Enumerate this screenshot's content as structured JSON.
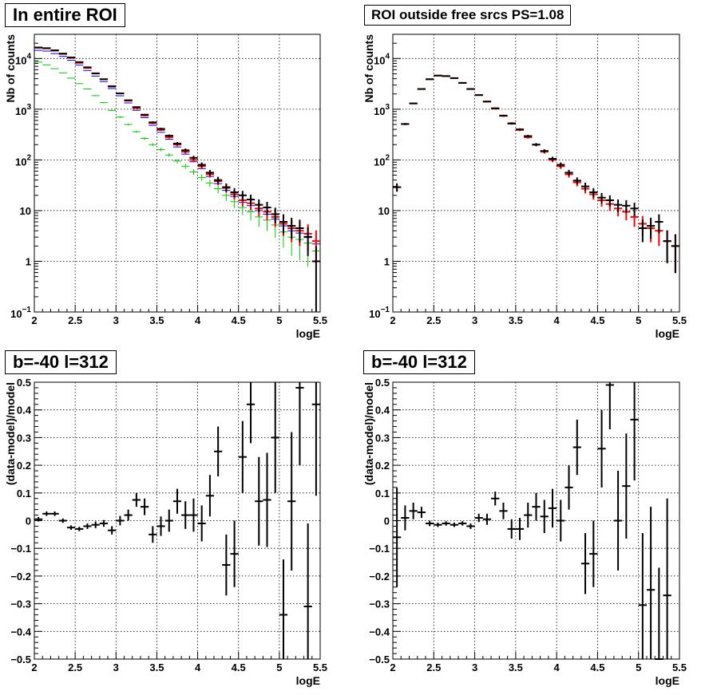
{
  "chart_data": [
    {
      "type": "scatter",
      "title": "In entire ROI",
      "xlabel": "logE",
      "ylabel": "Nb of counts",
      "xlim": [
        2,
        5.5
      ],
      "ylim": [
        0.1,
        30000
      ],
      "yscale": "log",
      "grid": true,
      "xticks": [
        "2",
        "2.5",
        "3",
        "3.5",
        "4",
        "4.5",
        "5",
        "5.5"
      ],
      "yticks": [
        {
          "v": 0.1,
          "base": "10",
          "exp": "−1"
        },
        {
          "v": 1,
          "label": "1"
        },
        {
          "v": 10,
          "label": "10"
        },
        {
          "v": 100,
          "base": "10",
          "exp": "2"
        },
        {
          "v": 1000,
          "base": "10",
          "exp": "3"
        },
        {
          "v": 10000,
          "base": "10",
          "exp": "4"
        }
      ],
      "colors": {
        "data": "#000000",
        "total": "#ff0000",
        "blue": "#0000ff",
        "green": "#00cc00"
      },
      "x": [
        2.05,
        2.15,
        2.25,
        2.35,
        2.45,
        2.55,
        2.65,
        2.75,
        2.85,
        2.95,
        3.05,
        3.15,
        3.25,
        3.35,
        3.45,
        3.55,
        3.65,
        3.75,
        3.85,
        3.95,
        4.05,
        4.15,
        4.25,
        4.35,
        4.45,
        4.55,
        4.65,
        4.75,
        4.85,
        4.95,
        5.05,
        5.15,
        5.25,
        5.35,
        5.45
      ],
      "series": [
        {
          "role": "data",
          "values": [
            16500,
            16000,
            14500,
            12500,
            10500,
            8500,
            6700,
            5100,
            3900,
            2800,
            2050,
            1500,
            1100,
            780,
            550,
            410,
            300,
            210,
            155,
            110,
            80,
            56,
            40,
            29,
            23,
            20,
            16.5,
            13,
            11.5,
            8.5,
            6,
            5,
            4.5,
            3,
            1
          ]
        },
        {
          "role": "total",
          "values": [
            16300,
            15800,
            14300,
            12300,
            10300,
            8200,
            6500,
            5050,
            3900,
            2850,
            2050,
            1470,
            1050,
            750,
            530,
            390,
            280,
            200,
            145,
            100,
            75,
            52,
            38,
            28,
            21,
            16,
            14,
            11,
            9.5,
            7.5,
            5.5,
            4.5,
            4,
            3.5,
            2.5
          ]
        },
        {
          "role": "blue",
          "values": [
            14500,
            14000,
            12500,
            11000,
            9200,
            7400,
            5800,
            4500,
            3500,
            2550,
            1840,
            1330,
            950,
            680,
            480,
            350,
            255,
            180,
            130,
            92,
            67,
            47,
            34,
            25,
            19,
            14.5,
            12.5,
            10,
            8.5,
            6.8,
            5,
            4,
            3.6,
            3.1,
            2.2
          ]
        },
        {
          "role": "green",
          "values": [
            8500,
            7500,
            6300,
            5200,
            4100,
            3200,
            2500,
            1850,
            1350,
            950,
            700,
            500,
            360,
            265,
            200,
            160,
            125,
            95,
            75,
            58,
            45,
            35,
            27,
            20,
            15,
            11.5,
            9.5,
            7.5,
            6.5,
            5.2,
            3.8,
            3,
            2.7,
            2.3,
            1.6
          ]
        }
      ]
    },
    {
      "type": "scatter",
      "title": "ROI outside free srcs PS=1.08",
      "xlabel": "logE",
      "ylabel": "Nb of counts",
      "xlim": [
        2,
        5.5
      ],
      "ylim": [
        0.1,
        30000
      ],
      "yscale": "log",
      "grid": true,
      "xticks": [
        "2",
        "2.5",
        "3",
        "3.5",
        "4",
        "4.5",
        "5",
        "5.5"
      ],
      "yticks": [
        {
          "v": 0.1,
          "base": "10",
          "exp": "−1"
        },
        {
          "v": 1,
          "label": "1"
        },
        {
          "v": 10,
          "label": "10"
        },
        {
          "v": 100,
          "base": "10",
          "exp": "2"
        },
        {
          "v": 1000,
          "base": "10",
          "exp": "3"
        },
        {
          "v": 10000,
          "base": "10",
          "exp": "4"
        }
      ],
      "colors": {
        "data": "#000000",
        "total": "#ff0000"
      },
      "x": [
        2.05,
        2.15,
        2.25,
        2.35,
        2.45,
        2.55,
        2.65,
        2.75,
        2.85,
        2.95,
        3.05,
        3.15,
        3.25,
        3.35,
        3.45,
        3.55,
        3.65,
        3.75,
        3.85,
        3.95,
        4.05,
        4.15,
        4.25,
        4.35,
        4.45,
        4.55,
        4.65,
        4.75,
        4.85,
        4.95,
        5.05,
        5.15,
        5.25,
        5.35,
        5.45
      ],
      "series": [
        {
          "role": "data",
          "values": [
            29,
            510,
            1300,
            2500,
            3900,
            4600,
            4500,
            4100,
            3300,
            2500,
            1900,
            1410,
            1030,
            740,
            520,
            400,
            295,
            200,
            150,
            105,
            80,
            56,
            39,
            30,
            23,
            18,
            16,
            13,
            12.5,
            11,
            4.5,
            5,
            6,
            2.5,
            2
          ]
        },
        {
          "role": "total",
          "values": [
            29,
            510,
            1300,
            2500,
            3900,
            4600,
            4500,
            4100,
            3300,
            2500,
            1900,
            1420,
            1050,
            750,
            530,
            390,
            280,
            200,
            145,
            100,
            75,
            52,
            36,
            27,
            21,
            16,
            13.5,
            11,
            9.5,
            7.5,
            5.5,
            4.5,
            4,
            2.5,
            2
          ]
        }
      ]
    },
    {
      "type": "scatter",
      "title": "b=-40 l=312",
      "xlabel": "logE",
      "ylabel": "(data-model)/model",
      "xlim": [
        2,
        5.5
      ],
      "ylim": [
        -0.5,
        0.5
      ],
      "grid": true,
      "xticks": [
        "2",
        "2.5",
        "3",
        "3.5",
        "4",
        "4.5",
        "5",
        "5.5"
      ],
      "yticks": [
        "−0.5",
        "−0.4",
        "−0.3",
        "−0.2",
        "−0.1",
        "0",
        "0.1",
        "0.2",
        "0.3",
        "0.4",
        "0.5"
      ],
      "x": [
        2.05,
        2.15,
        2.25,
        2.35,
        2.45,
        2.55,
        2.65,
        2.75,
        2.85,
        2.95,
        3.05,
        3.15,
        3.25,
        3.35,
        3.45,
        3.55,
        3.65,
        3.75,
        3.85,
        3.95,
        4.05,
        4.15,
        4.25,
        4.35,
        4.45,
        4.55,
        4.65,
        4.75,
        4.85,
        4.95,
        5.05,
        5.15,
        5.25,
        5.35,
        5.45
      ],
      "values": [
        0.005,
        0.025,
        0.025,
        0,
        -0.025,
        -0.03,
        -0.02,
        -0.015,
        -0.01,
        -0.035,
        0,
        0.02,
        0.075,
        0.05,
        -0.05,
        -0.02,
        0,
        0.07,
        0.02,
        0.02,
        -0.01,
        0.09,
        0.25,
        -0.16,
        -0.12,
        0.23,
        0.42,
        0.07,
        0.075,
        0.3,
        -0.34,
        0.07,
        0.48,
        -0.31,
        0.42
      ],
      "errors": [
        0.008,
        0.008,
        0.008,
        0.008,
        0.008,
        0.008,
        0.01,
        0.012,
        0.012,
        0.015,
        0.017,
        0.02,
        0.025,
        0.03,
        0.03,
        0.035,
        0.04,
        0.045,
        0.05,
        0.06,
        0.065,
        0.075,
        0.09,
        0.11,
        0.12,
        0.13,
        0.14,
        0.16,
        0.17,
        0.2,
        0.2,
        0.25,
        0.28,
        0.3,
        0.33
      ]
    },
    {
      "type": "scatter",
      "title": "b=-40 l=312",
      "xlabel": "logE",
      "ylabel": "(data-model)/model",
      "xlim": [
        2,
        5.5
      ],
      "ylim": [
        -0.5,
        0.5
      ],
      "grid": true,
      "xticks": [
        "2",
        "2.5",
        "3",
        "3.5",
        "4",
        "4.5",
        "5",
        "5.5"
      ],
      "yticks": [
        "−0.5",
        "−0.4",
        "−0.3",
        "−0.2",
        "−0.1",
        "0",
        "0.1",
        "0.2",
        "0.3",
        "0.4",
        "0.5"
      ],
      "x": [
        2.05,
        2.15,
        2.25,
        2.35,
        2.45,
        2.55,
        2.65,
        2.75,
        2.85,
        2.95,
        3.05,
        3.15,
        3.25,
        3.35,
        3.45,
        3.55,
        3.65,
        3.75,
        3.85,
        3.95,
        4.05,
        4.15,
        4.25,
        4.35,
        4.45,
        4.55,
        4.65,
        4.75,
        4.85,
        4.95,
        5.05,
        5.15,
        5.25,
        5.35
      ],
      "values": [
        -0.06,
        0.01,
        0.035,
        0.03,
        -0.01,
        -0.015,
        -0.01,
        -0.015,
        -0.01,
        -0.02,
        0.01,
        0.005,
        0.08,
        0.035,
        -0.03,
        -0.03,
        0.02,
        0.05,
        0.015,
        0.045,
        0,
        0.12,
        0.265,
        -0.155,
        -0.12,
        0.26,
        0.49,
        0,
        0.125,
        0.365,
        -0.305,
        -0.25,
        -0.5,
        -0.27
      ],
      "errors": [
        0.18,
        0.045,
        0.03,
        0.02,
        0.01,
        0.008,
        0.008,
        0.008,
        0.008,
        0.01,
        0.015,
        0.02,
        0.025,
        0.03,
        0.035,
        0.04,
        0.045,
        0.05,
        0.06,
        0.07,
        0.075,
        0.08,
        0.1,
        0.11,
        0.12,
        0.14,
        0.16,
        0.18,
        0.19,
        0.22,
        0.26,
        0.3,
        0.33,
        0.35
      ]
    }
  ]
}
